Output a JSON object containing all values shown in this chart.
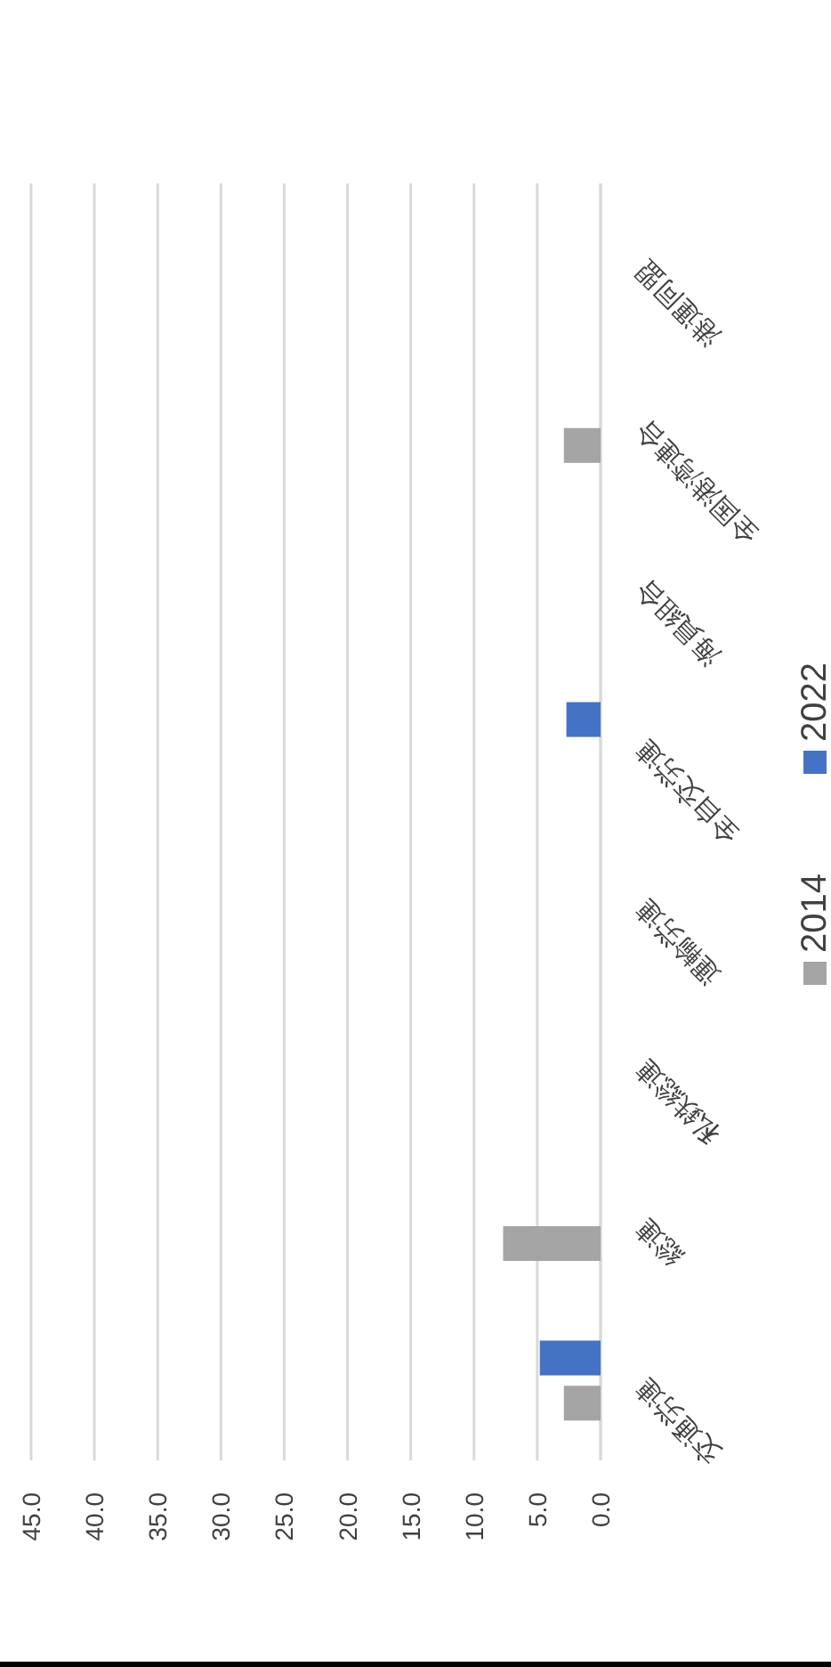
{
  "chart_data": {
    "type": "bar",
    "orientation": "horizontal",
    "categories": [
      "港運同盟",
      "全国港湾連合",
      "海員組合",
      "全自交労連",
      "運輸労連",
      "私鉄総連",
      "総連",
      "交通労連"
    ],
    "series": [
      {
        "name": "2014",
        "color": "#a5a5a5",
        "values": [
          null,
          2.9,
          null,
          null,
          null,
          null,
          7.7,
          2.9
        ]
      },
      {
        "name": "2022",
        "color": "#4472c4",
        "values": [
          null,
          null,
          null,
          2.7,
          null,
          null,
          null,
          4.8
        ]
      }
    ],
    "xlim": [
      45,
      0
    ],
    "xticks": [
      {
        "value": 45,
        "label": "45.0"
      },
      {
        "value": 40,
        "label": "40.0"
      },
      {
        "value": 35,
        "label": "35.0"
      },
      {
        "value": 30,
        "label": "30.0"
      },
      {
        "value": 25,
        "label": "25.0"
      },
      {
        "value": 20,
        "label": "20.0"
      },
      {
        "value": 15,
        "label": "15.0"
      },
      {
        "value": 10,
        "label": "10.0"
      },
      {
        "value": 5,
        "label": "5.0"
      },
      {
        "value": 0,
        "label": "0.0"
      }
    ],
    "grid": "x",
    "legend": "right"
  }
}
